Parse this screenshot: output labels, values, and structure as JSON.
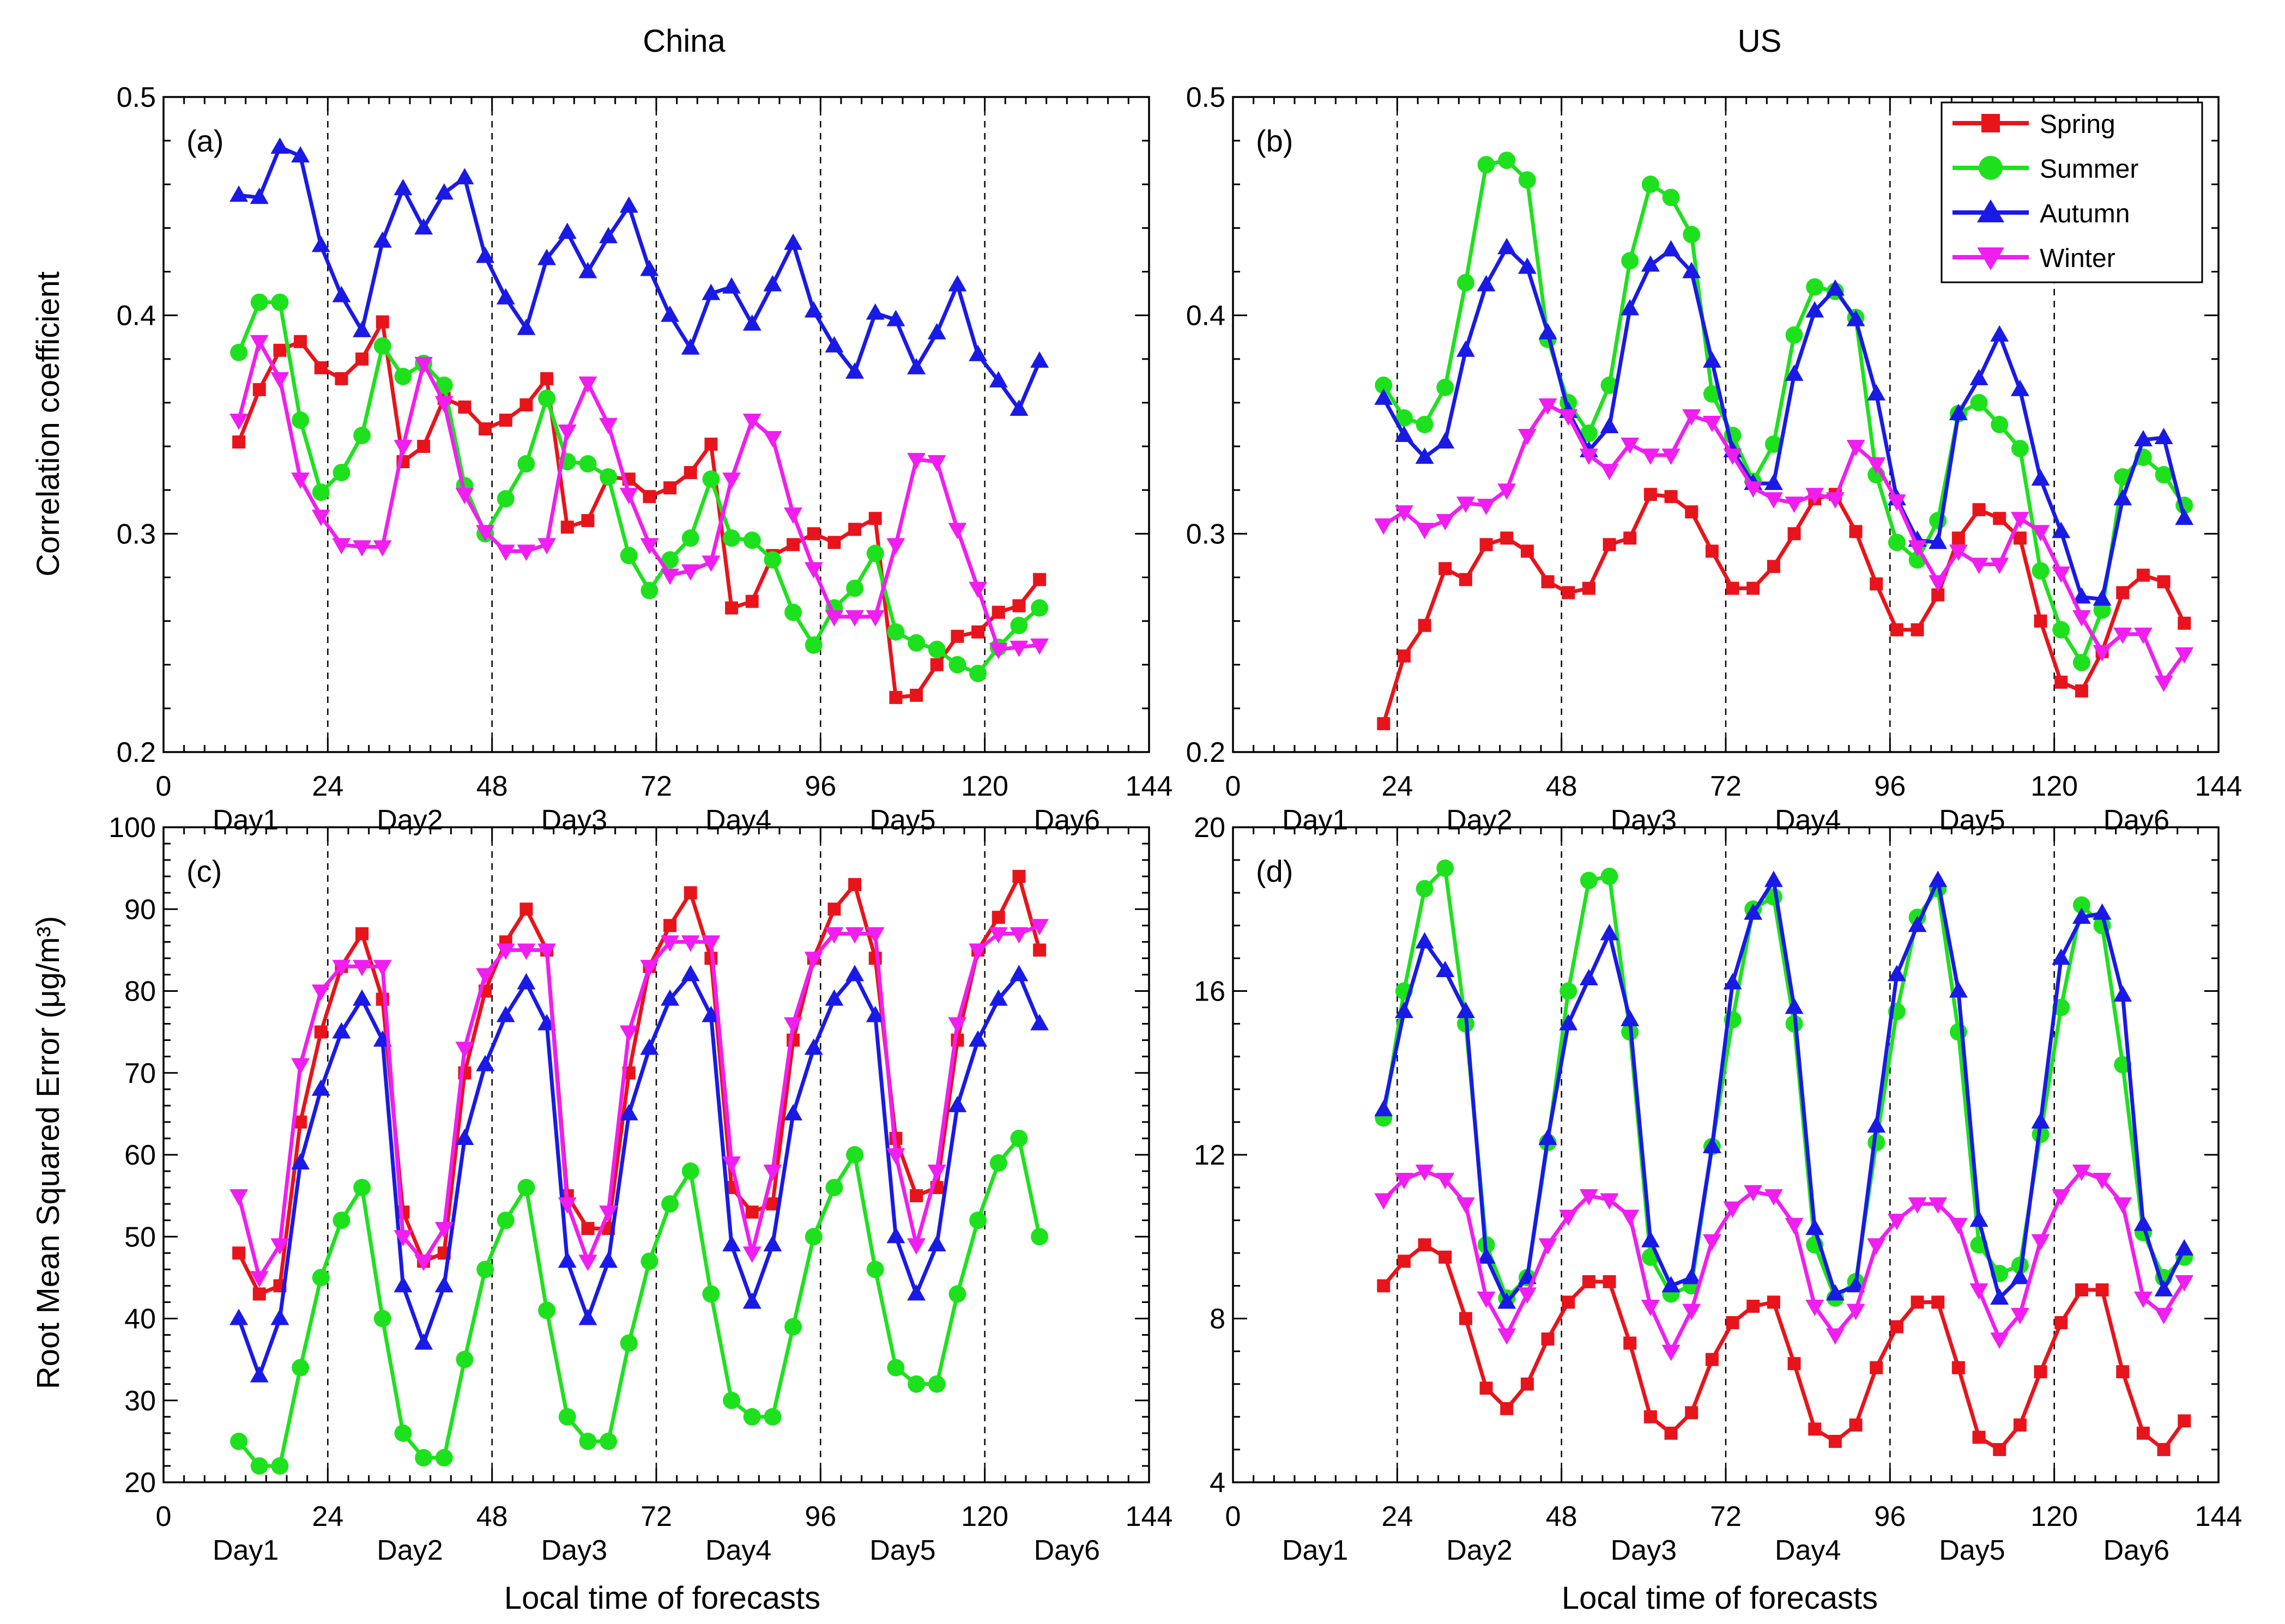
{
  "figure": {
    "column_titles": [
      "China",
      "US"
    ],
    "xlabel": "Local time of forecasts",
    "x_ticks": [
      "0",
      "24",
      "48",
      "72",
      "96",
      "120",
      "144"
    ],
    "day_labels": [
      "Day1",
      "Day2",
      "Day3",
      "Day4",
      "Day5",
      "Day6"
    ],
    "legend": [
      {
        "name": "Spring",
        "color": "#e8141b",
        "marker": "square"
      },
      {
        "name": "Summer",
        "color": "#1ee11e",
        "marker": "circle"
      },
      {
        "name": "Autumn",
        "color": "#1a1ae6",
        "marker": "triangle-up"
      },
      {
        "name": "Winter",
        "color": "#f01ef0",
        "marker": "triangle-down"
      }
    ]
  },
  "chart_data": [
    {
      "type": "line",
      "panel": "(a)",
      "region": "China",
      "ylabel": "Correlation coefficient",
      "xlim": [
        0,
        144
      ],
      "ylim": [
        0.2,
        0.5
      ],
      "yticks": [
        "0.2",
        "0.3",
        "0.4",
        "0.5"
      ],
      "x": [
        11,
        14,
        17,
        20,
        23,
        26,
        29,
        32,
        35,
        38,
        41,
        44,
        47,
        50,
        53,
        56,
        59,
        62,
        65,
        68,
        71,
        74,
        77,
        80,
        83,
        86,
        89,
        92,
        95,
        98,
        101,
        104,
        107,
        110,
        113,
        116,
        119,
        122,
        125,
        128
      ],
      "series": [
        {
          "name": "Spring",
          "values": [
            0.342,
            0.366,
            0.384,
            0.388,
            0.376,
            0.371,
            0.38,
            0.397,
            0.333,
            0.34,
            0.362,
            0.358,
            0.348,
            0.352,
            0.359,
            0.371,
            0.303,
            0.306,
            0.326,
            0.325,
            0.317,
            0.321,
            0.328,
            0.341,
            0.266,
            0.269,
            0.29,
            0.295,
            0.3,
            0.296,
            0.302,
            0.307,
            0.225,
            0.226,
            0.24,
            0.253,
            0.255,
            0.264,
            0.267,
            0.279
          ]
        },
        {
          "name": "Summer",
          "values": [
            0.383,
            0.406,
            0.406,
            0.352,
            0.319,
            0.328,
            0.345,
            0.386,
            0.372,
            0.378,
            0.368,
            0.322,
            0.3,
            0.316,
            0.332,
            0.362,
            0.333,
            0.332,
            0.326,
            0.29,
            0.274,
            0.288,
            0.298,
            0.325,
            0.298,
            0.297,
            0.288,
            0.264,
            0.249,
            0.266,
            0.275,
            0.291,
            0.255,
            0.25,
            0.247,
            0.24,
            0.236,
            0.248,
            0.258,
            0.266
          ]
        },
        {
          "name": "Autumn",
          "values": [
            0.455,
            0.454,
            0.477,
            0.473,
            0.432,
            0.409,
            0.393,
            0.434,
            0.458,
            0.44,
            0.456,
            0.463,
            0.427,
            0.408,
            0.394,
            0.426,
            0.438,
            0.42,
            0.436,
            0.45,
            0.421,
            0.4,
            0.385,
            0.41,
            0.413,
            0.396,
            0.414,
            0.433,
            0.402,
            0.386,
            0.374,
            0.401,
            0.398,
            0.376,
            0.392,
            0.414,
            0.382,
            0.37,
            0.357,
            0.379
          ]
        },
        {
          "name": "Winter",
          "values": [
            0.352,
            0.388,
            0.371,
            0.325,
            0.308,
            0.295,
            0.294,
            0.294,
            0.34,
            0.378,
            0.36,
            0.318,
            0.301,
            0.292,
            0.292,
            0.295,
            0.347,
            0.369,
            0.35,
            0.318,
            0.295,
            0.281,
            0.283,
            0.287,
            0.325,
            0.352,
            0.344,
            0.309,
            0.284,
            0.262,
            0.262,
            0.262,
            0.295,
            0.334,
            0.333,
            0.302,
            0.275,
            0.247,
            0.248,
            0.249
          ]
        }
      ]
    },
    {
      "type": "line",
      "panel": "(b)",
      "region": "US",
      "xlim": [
        0,
        144
      ],
      "ylim": [
        0.2,
        0.5
      ],
      "yticks": [
        "0.2",
        "0.3",
        "0.4",
        "0.5"
      ],
      "x": [
        22,
        25,
        28,
        31,
        34,
        37,
        40,
        43,
        46,
        49,
        52,
        55,
        58,
        61,
        64,
        67,
        70,
        73,
        76,
        79,
        82,
        85,
        88,
        91,
        94,
        97,
        100,
        103,
        106,
        109,
        112,
        115,
        118,
        121,
        124,
        127,
        130,
        133,
        136,
        139
      ],
      "series": [
        {
          "name": "Spring",
          "values": [
            0.213,
            0.244,
            0.258,
            0.284,
            0.279,
            0.295,
            0.298,
            0.292,
            0.278,
            0.273,
            0.275,
            0.295,
            0.298,
            0.318,
            0.317,
            0.31,
            0.292,
            0.275,
            0.275,
            0.285,
            0.3,
            0.316,
            0.318,
            0.301,
            0.277,
            0.256,
            0.256,
            0.272,
            0.298,
            0.311,
            0.307,
            0.298,
            0.26,
            0.232,
            0.228,
            0.246,
            0.273,
            0.281,
            0.278,
            0.259
          ]
        },
        {
          "name": "Summer",
          "values": [
            0.368,
            0.353,
            0.35,
            0.367,
            0.415,
            0.469,
            0.471,
            0.462,
            0.389,
            0.36,
            0.346,
            0.368,
            0.425,
            0.46,
            0.454,
            0.437,
            0.364,
            0.345,
            0.324,
            0.341,
            0.391,
            0.413,
            0.411,
            0.399,
            0.327,
            0.296,
            0.288,
            0.306,
            0.355,
            0.36,
            0.35,
            0.339,
            0.283,
            0.256,
            0.241,
            0.265,
            0.326,
            0.335,
            0.327,
            0.313
          ]
        },
        {
          "name": "Autumn",
          "values": [
            0.362,
            0.345,
            0.335,
            0.342,
            0.384,
            0.414,
            0.431,
            0.422,
            0.392,
            0.356,
            0.338,
            0.349,
            0.403,
            0.423,
            0.43,
            0.42,
            0.379,
            0.338,
            0.323,
            0.323,
            0.373,
            0.402,
            0.412,
            0.398,
            0.364,
            0.316,
            0.297,
            0.296,
            0.355,
            0.371,
            0.391,
            0.366,
            0.325,
            0.301,
            0.271,
            0.27,
            0.316,
            0.343,
            0.344,
            0.307
          ]
        },
        {
          "name": "Winter",
          "values": [
            0.304,
            0.31,
            0.302,
            0.306,
            0.314,
            0.313,
            0.32,
            0.345,
            0.359,
            0.354,
            0.336,
            0.329,
            0.341,
            0.336,
            0.336,
            0.354,
            0.351,
            0.336,
            0.321,
            0.316,
            0.314,
            0.318,
            0.316,
            0.34,
            0.332,
            0.315,
            0.294,
            0.278,
            0.292,
            0.286,
            0.286,
            0.307,
            0.301,
            0.282,
            0.262,
            0.246,
            0.254,
            0.254,
            0.232,
            0.245
          ]
        }
      ]
    },
    {
      "type": "line",
      "panel": "(c)",
      "region": "China",
      "ylabel": "Root Mean Squared Error (μg/m³)",
      "xlim": [
        0,
        144
      ],
      "ylim": [
        20,
        100
      ],
      "yticks": [
        "20",
        "30",
        "40",
        "50",
        "60",
        "70",
        "80",
        "90",
        "100"
      ],
      "x": [
        11,
        14,
        17,
        20,
        23,
        26,
        29,
        32,
        35,
        38,
        41,
        44,
        47,
        50,
        53,
        56,
        59,
        62,
        65,
        68,
        71,
        74,
        77,
        80,
        83,
        86,
        89,
        92,
        95,
        98,
        101,
        104,
        107,
        110,
        113,
        116,
        119,
        122,
        125,
        128
      ],
      "series": [
        {
          "name": "Spring",
          "values": [
            48,
            43,
            44,
            64,
            75,
            83,
            87,
            79,
            53,
            47,
            48,
            70,
            80,
            86,
            90,
            85,
            55,
            51,
            51,
            70,
            83,
            88,
            92,
            84,
            56,
            53,
            54,
            74,
            84,
            90,
            93,
            84,
            62,
            55,
            56,
            74,
            85,
            89,
            94,
            85
          ]
        },
        {
          "name": "Summer",
          "values": [
            25,
            22,
            22,
            34,
            45,
            52,
            56,
            40,
            26,
            23,
            23,
            35,
            46,
            52,
            56,
            41,
            28,
            25,
            25,
            37,
            47,
            54,
            58,
            43,
            30,
            28,
            28,
            39,
            50,
            56,
            60,
            46,
            34,
            32,
            32,
            43,
            52,
            59,
            62,
            50
          ]
        },
        {
          "name": "Autumn",
          "values": [
            40,
            33,
            40,
            59,
            68,
            75,
            79,
            74,
            44,
            37,
            44,
            62,
            71,
            77,
            81,
            76,
            47,
            40,
            47,
            65,
            73,
            79,
            82,
            77,
            49,
            42,
            49,
            65,
            73,
            79,
            82,
            77,
            50,
            43,
            49,
            66,
            74,
            79,
            82,
            76
          ]
        },
        {
          "name": "Winter",
          "values": [
            55,
            45,
            49,
            71,
            80,
            83,
            83,
            83,
            50,
            47,
            51,
            73,
            82,
            85,
            85,
            85,
            54,
            47,
            53,
            75,
            83,
            86,
            86,
            86,
            59,
            48,
            58,
            76,
            84,
            87,
            87,
            87,
            60,
            49,
            58,
            76,
            85,
            87,
            87,
            88
          ]
        }
      ]
    },
    {
      "type": "line",
      "panel": "(d)",
      "region": "US",
      "xlim": [
        0,
        144
      ],
      "ylim": [
        4,
        20
      ],
      "yticks": [
        "4",
        "8",
        "12",
        "16",
        "20"
      ],
      "x": [
        22,
        25,
        28,
        31,
        34,
        37,
        40,
        43,
        46,
        49,
        52,
        55,
        58,
        61,
        64,
        67,
        70,
        73,
        76,
        79,
        82,
        85,
        88,
        91,
        94,
        97,
        100,
        103,
        106,
        109,
        112,
        115,
        118,
        121,
        124,
        127,
        130,
        133,
        136,
        139
      ],
      "series": [
        {
          "name": "Spring",
          "values": [
            8.8,
            9.4,
            9.8,
            9.5,
            8.0,
            6.3,
            5.8,
            6.4,
            7.5,
            8.4,
            8.9,
            8.9,
            7.4,
            5.6,
            5.2,
            5.7,
            7.0,
            7.9,
            8.3,
            8.4,
            6.9,
            5.3,
            5.0,
            5.4,
            6.8,
            7.8,
            8.4,
            8.4,
            6.8,
            5.1,
            4.8,
            5.4,
            6.7,
            7.9,
            8.7,
            8.7,
            6.7,
            5.2,
            4.8,
            5.5
          ]
        },
        {
          "name": "Summer",
          "values": [
            12.9,
            16.0,
            18.5,
            19.0,
            15.2,
            9.8,
            8.5,
            9.0,
            12.3,
            16.0,
            18.7,
            18.8,
            15.0,
            9.5,
            8.6,
            8.8,
            12.2,
            15.3,
            18.0,
            18.3,
            15.2,
            9.8,
            8.5,
            8.9,
            12.3,
            15.5,
            17.8,
            18.5,
            15.0,
            9.8,
            9.1,
            9.3,
            12.5,
            15.6,
            18.1,
            17.6,
            14.2,
            10.1,
            9.0,
            9.5
          ]
        },
        {
          "name": "Autumn",
          "values": [
            13.1,
            15.5,
            17.2,
            16.5,
            15.5,
            9.5,
            8.4,
            9.0,
            12.4,
            15.2,
            16.3,
            17.4,
            15.3,
            9.9,
            8.8,
            9.0,
            12.2,
            16.2,
            17.9,
            18.7,
            15.6,
            10.2,
            8.6,
            8.8,
            12.7,
            16.4,
            17.6,
            18.7,
            16.0,
            10.4,
            8.5,
            9.0,
            12.8,
            16.8,
            17.8,
            17.9,
            15.9,
            10.3,
            8.7,
            9.7
          ]
        },
        {
          "name": "Winter",
          "values": [
            10.9,
            11.4,
            11.6,
            11.4,
            10.8,
            8.5,
            7.6,
            8.6,
            9.8,
            10.5,
            11.0,
            10.9,
            10.5,
            8.3,
            7.2,
            8.2,
            9.9,
            10.7,
            11.1,
            11.0,
            10.3,
            8.3,
            7.6,
            8.2,
            9.8,
            10.4,
            10.8,
            10.8,
            10.3,
            8.7,
            7.5,
            8.1,
            9.9,
            11.0,
            11.6,
            11.4,
            10.8,
            8.5,
            8.1,
            8.9
          ]
        }
      ]
    }
  ]
}
